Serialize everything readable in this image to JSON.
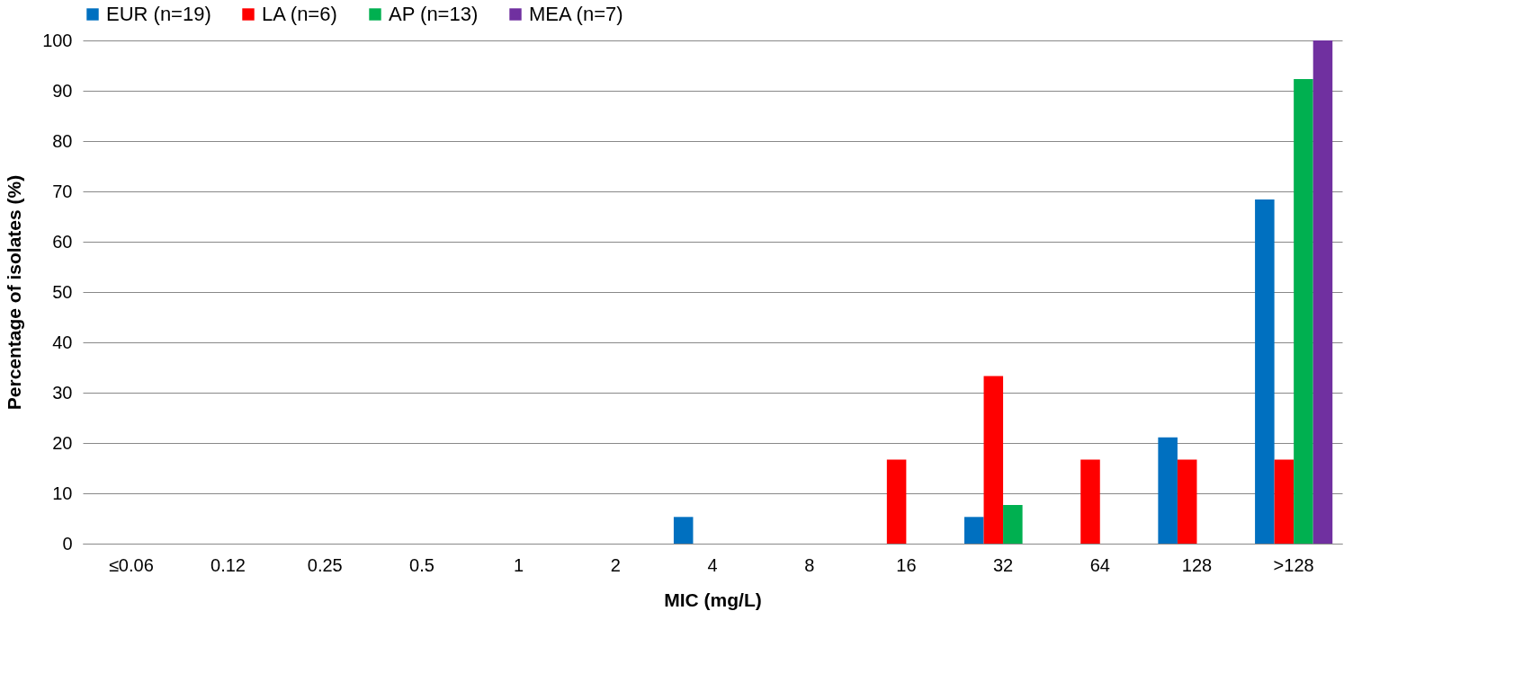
{
  "chart_data": {
    "type": "bar",
    "xlabel": "MIC (mg/L)",
    "ylabel": "Percentage of isolates (%)",
    "categories": [
      "≤0.06",
      "0.12",
      "0.25",
      "0.5",
      "1",
      "2",
      "4",
      "8",
      "16",
      "32",
      "64",
      "128",
      ">128"
    ],
    "series": [
      {
        "name": "EUR (n=19)",
        "color": "#0070c0",
        "values": [
          0,
          0,
          0,
          0,
          0,
          0,
          5.3,
          0,
          0,
          5.3,
          0,
          21.1,
          68.4
        ]
      },
      {
        "name": "LA (n=6)",
        "color": "#ff0000",
        "values": [
          0,
          0,
          0,
          0,
          0,
          0,
          0,
          0,
          16.7,
          33.3,
          16.7,
          16.7,
          16.7
        ]
      },
      {
        "name": "AP (n=13)",
        "color": "#00b050",
        "values": [
          0,
          0,
          0,
          0,
          0,
          0,
          0,
          0,
          0,
          7.7,
          0,
          0,
          92.3
        ]
      },
      {
        "name": "MEA (n=7)",
        "color": "#7030a0",
        "values": [
          0,
          0,
          0,
          0,
          0,
          0,
          0,
          0,
          0,
          0,
          0,
          0,
          100
        ]
      }
    ],
    "ylim": [
      0,
      100
    ],
    "yticks": [
      0,
      10,
      20,
      30,
      40,
      50,
      60,
      70,
      80,
      90,
      100
    ],
    "grid": "y",
    "legend": "top"
  }
}
